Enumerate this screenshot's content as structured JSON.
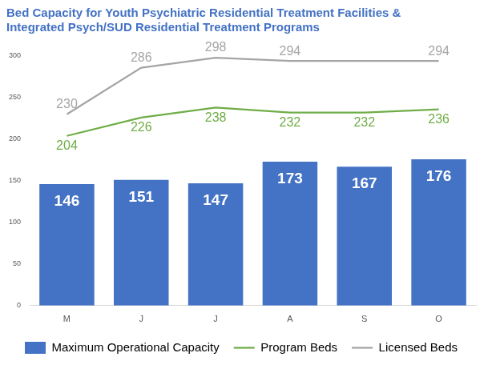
{
  "chart_data": {
    "type": "bar",
    "title": [
      "Bed Capacity for Youth Psychiatric Residential Treatment Facilities &",
      "Integrated Psych/SUD Residential Treatment Programs"
    ],
    "categories": [
      "M",
      "J",
      "J",
      "A",
      "S",
      "O"
    ],
    "series": [
      {
        "name": "Maximum Operational Capacity",
        "type": "bar",
        "color": "#4472c4",
        "values": [
          146,
          151,
          147,
          173,
          167,
          176
        ]
      },
      {
        "name": "Program Beds",
        "type": "line",
        "color": "#70ad47",
        "marker": "none",
        "line_style": "solid",
        "values": [
          204,
          226,
          238,
          232,
          232,
          236
        ]
      },
      {
        "name": "Licensed Beds",
        "type": "line",
        "color": "#a5a5a5",
        "marker": "none",
        "line_style": "solid",
        "values": [
          230,
          286,
          298,
          294,
          294,
          294
        ],
        "value_labels": [
          "230",
          "286",
          "298",
          "294",
          null,
          "294"
        ]
      }
    ],
    "ylim": [
      0,
      300
    ],
    "yticks": [
      0,
      50,
      100,
      150,
      200,
      250,
      300
    ],
    "grid": false,
    "legend": "bottom",
    "data_labels": true
  }
}
